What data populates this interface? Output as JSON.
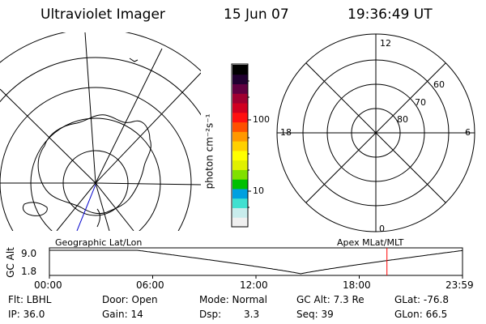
{
  "header": {
    "title": "Ultraviolet Imager",
    "date": "15 Jun 07",
    "time": "19:36:49 UT"
  },
  "colorbar": {
    "unit_label": "photon cm⁻²s⁻¹",
    "tick_100": "100",
    "tick_10": "10",
    "colors": [
      "#f0f0f0",
      "#c8ecec",
      "#40e0d0",
      "#00a0e0",
      "#00c000",
      "#80e000",
      "#e0f000",
      "#ffff00",
      "#ffd000",
      "#ff9800",
      "#ff5000",
      "#ff1010",
      "#d00020",
      "#a00030",
      "#600040",
      "#200030",
      "#000000"
    ]
  },
  "geo": {
    "label": "Geographic Lat/Lon"
  },
  "polar": {
    "label": "Apex MLat/MLT",
    "mlt_top": "12",
    "mlt_left": "18",
    "mlt_right": "6",
    "mlt_bottom": "0",
    "lat_60": "60",
    "lat_70": "70",
    "lat_80": "80"
  },
  "strip": {
    "ylabel": "GC Alt",
    "ymax": "9.0",
    "ymin": "1.8",
    "xticks": [
      "00:00",
      "06:00",
      "12:00",
      "18:00",
      "23:59"
    ],
    "marker_time_hours": 19.61
  },
  "info": {
    "flt": "Flt: LBHL",
    "ip": "IP: 36.0",
    "door": "Door: Open",
    "gain": "Gain: 14",
    "mode": "Mode: Normal",
    "dsp_label": "Dsp:",
    "dsp_value": "3.3",
    "gcalt": "GC Alt: 7.3 Re",
    "seq": "Seq: 39",
    "glat": "GLat: -76.8",
    "glon": "GLon: 66.5"
  }
}
